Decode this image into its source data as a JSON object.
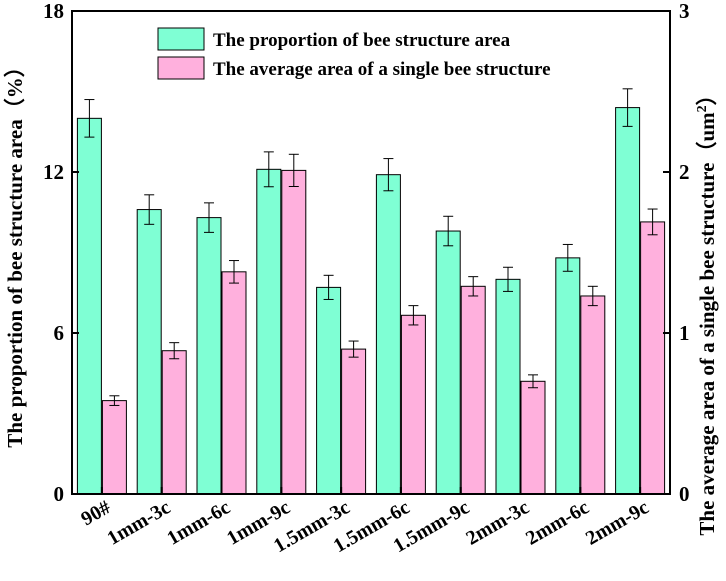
{
  "chart_data": {
    "type": "bar",
    "categories": [
      "90#",
      "1mm-3c",
      "1mm-6c",
      "1mm-9c",
      "1.5mm-3c",
      "1.5mm-6c",
      "1.5mm-9c",
      "2mm-3c",
      "2mm-6c",
      "2mm-9c"
    ],
    "series": [
      {
        "name": "The proportion of bee structure area",
        "axis": "left",
        "color": "#7FFFD4",
        "values": [
          14.0,
          10.6,
          10.3,
          12.1,
          7.7,
          11.9,
          9.8,
          8.0,
          8.8,
          14.4
        ],
        "errors": [
          0.7,
          0.55,
          0.55,
          0.65,
          0.45,
          0.6,
          0.55,
          0.45,
          0.5,
          0.7
        ]
      },
      {
        "name": "The average area of a single bee structure",
        "axis": "right",
        "color": "#FFB0DD",
        "values": [
          0.58,
          0.89,
          1.38,
          2.01,
          0.9,
          1.11,
          1.29,
          0.7,
          1.23,
          1.69
        ],
        "errors": [
          0.03,
          0.05,
          0.07,
          0.1,
          0.05,
          0.06,
          0.06,
          0.04,
          0.06,
          0.08
        ]
      }
    ],
    "ylabel": "The proportion of bee structure area（%）",
    "y2label_main": "The average area of a single bee structure（um",
    "y2label_sup": "2",
    "y2label_end": "）",
    "ylim": [
      0,
      18
    ],
    "y2lim": [
      0,
      3
    ],
    "yticks": [
      "0",
      "6",
      "12",
      "18"
    ],
    "y2ticks": [
      "0",
      "1",
      "2",
      "3"
    ],
    "legend_position": "top-center",
    "grid": false
  }
}
